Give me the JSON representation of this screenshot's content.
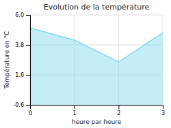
{
  "chart_data": {
    "type": "area",
    "title": "Evolution de la température",
    "x_label": "heure par heure",
    "y_label": "Température en °C",
    "x": [
      0,
      1,
      2,
      3
    ],
    "values": [
      5.05,
      4.15,
      2.55,
      4.7
    ],
    "color": "#7dd8f0",
    "xlim": [
      0,
      3
    ],
    "xticks": [
      0,
      1,
      2,
      3
    ],
    "ylim": [
      -0.6,
      6.0
    ],
    "yticks": [
      -0.6,
      1.6,
      3.8,
      {
        "value": 6.0,
        "label": "6.0"
      }
    ],
    "grid": true
  }
}
